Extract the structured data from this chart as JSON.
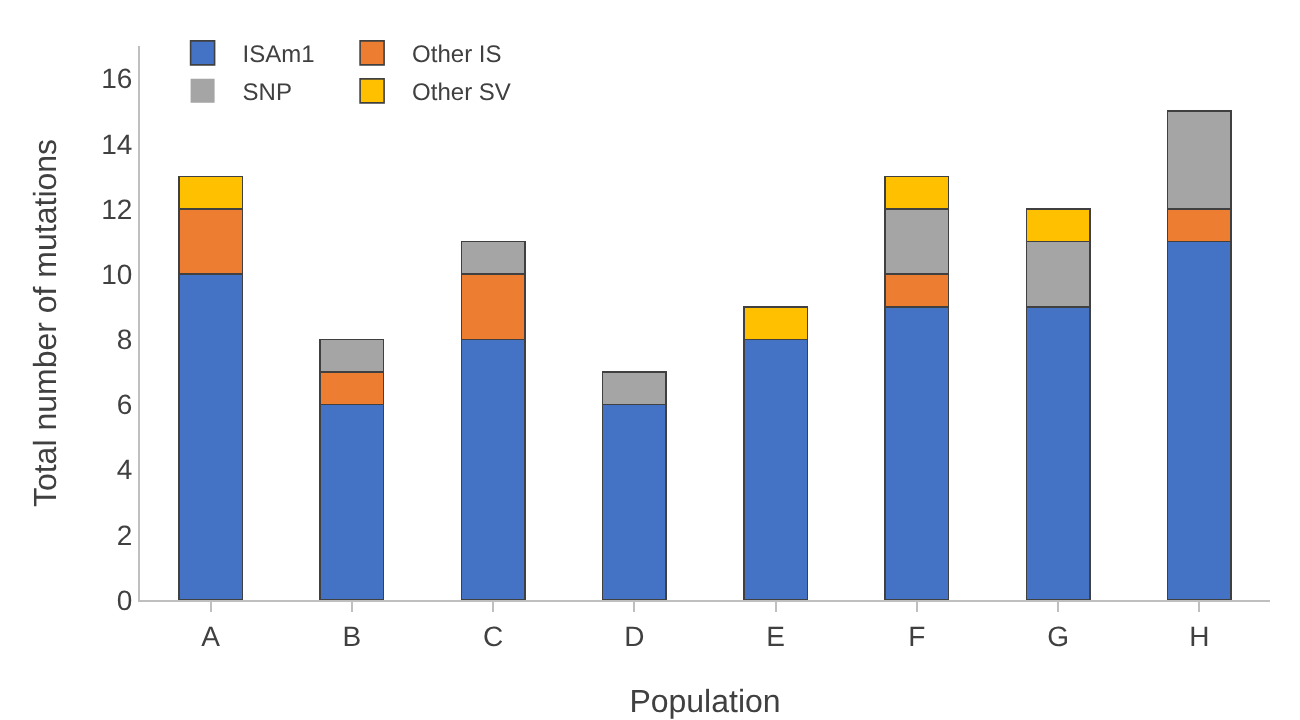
{
  "chart_data": {
    "type": "bar",
    "stacked": true,
    "xlabel": "Population",
    "ylabel": "Total number of mutations",
    "categories": [
      "A",
      "B",
      "C",
      "D",
      "E",
      "F",
      "G",
      "H"
    ],
    "series": [
      {
        "name": "ISAm1",
        "color": "#4472c4",
        "values": [
          10,
          6,
          8,
          6,
          8,
          9,
          9,
          11
        ]
      },
      {
        "name": "Other IS",
        "color": "#ed7d31",
        "values": [
          2,
          1,
          2,
          0,
          0,
          1,
          0,
          1
        ]
      },
      {
        "name": "SNP",
        "color": "#a5a5a5",
        "values": [
          0,
          1,
          1,
          1,
          0,
          2,
          2,
          3
        ]
      },
      {
        "name": "Other SV",
        "color": "#ffc000",
        "values": [
          1,
          0,
          0,
          0,
          1,
          1,
          1,
          0
        ]
      }
    ],
    "ylim": [
      0,
      17
    ],
    "yticks": [
      0,
      2,
      4,
      6,
      8,
      10,
      12,
      14,
      16
    ],
    "grid": false,
    "legend": "top left"
  }
}
